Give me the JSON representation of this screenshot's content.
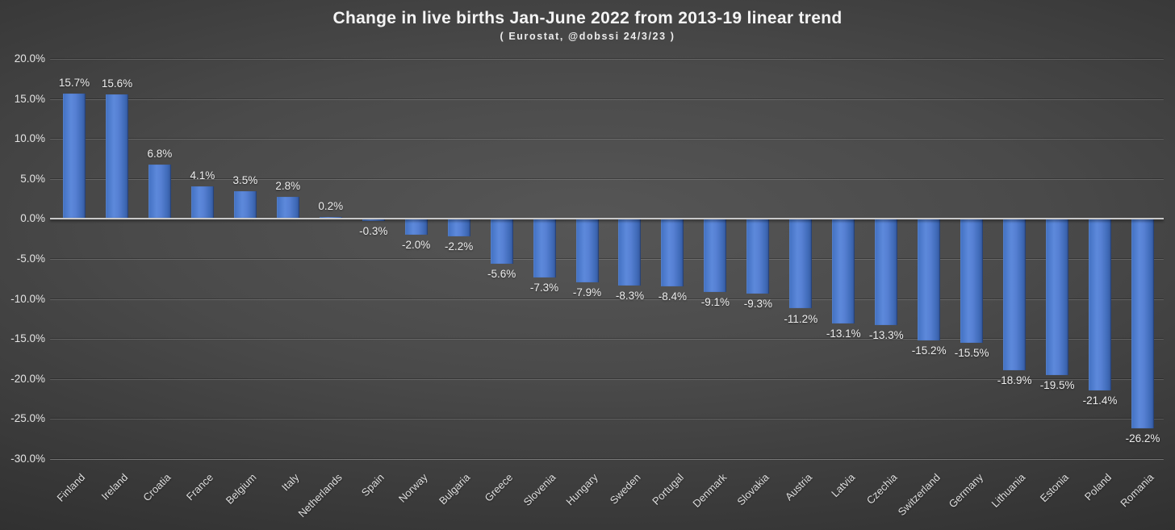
{
  "header": {
    "title": "Change in live births Jan-June 2022 from 2013-19 linear trend",
    "subtitle": "( Eurostat, @dobssi 24/3/23 )"
  },
  "chart_data": {
    "type": "bar",
    "title": "Change in live births Jan-June 2022 from 2013-19 linear trend",
    "subtitle": "( Eurostat, @dobssi 24/3/23 )",
    "xlabel": "",
    "ylabel": "",
    "ylim": [
      -30,
      20
    ],
    "ytick_step": 5,
    "ytick_labels": [
      "20.0%",
      "15.0%",
      "10.0%",
      "5.0%",
      "0.0%",
      "-5.0%",
      "-10.0%",
      "-15.0%",
      "-20.0%",
      "-25.0%",
      "-30.0%"
    ],
    "grid": true,
    "legend_position": "none",
    "bar_color": "#4472C4",
    "categories": [
      "Finland",
      "Ireland",
      "Croatia",
      "France",
      "Belgium",
      "Italy",
      "Netherlands",
      "Spain",
      "Norway",
      "Bulgaria",
      "Greece",
      "Slovenia",
      "Hungary",
      "Sweden",
      "Portugal",
      "Denmark",
      "Slovakia",
      "Austria",
      "Latvia",
      "Czechia",
      "Switzerland",
      "Germany",
      "Lithuania",
      "Estonia",
      "Poland",
      "Romania"
    ],
    "values": [
      15.7,
      15.6,
      6.8,
      4.1,
      3.5,
      2.8,
      0.2,
      -0.3,
      -2.0,
      -2.2,
      -5.6,
      -7.3,
      -7.9,
      -8.3,
      -8.4,
      -9.1,
      -9.3,
      -11.2,
      -13.1,
      -13.3,
      -15.2,
      -15.5,
      -18.9,
      -19.5,
      -21.4,
      -26.2
    ],
    "value_labels": [
      "15.7%",
      "15.6%",
      "6.8%",
      "4.1%",
      "3.5%",
      "2.8%",
      "0.2%",
      "-0.3%",
      "-2.0%",
      "-2.2%",
      "-5.6%",
      "-7.3%",
      "-7.9%",
      "-8.3%",
      "-8.4%",
      "-9.1%",
      "-9.3%",
      "-11.2%",
      "-13.1%",
      "-13.3%",
      "-15.2%",
      "-15.5%",
      "-18.9%",
      "-19.5%",
      "-21.4%",
      "-26.2%"
    ]
  },
  "colors": {
    "background_center": "#565656",
    "background_corner": "#242424",
    "bar_fill": "#4472C4",
    "bar_highlight": "#5d89db",
    "axis_line": "#c9c9c9",
    "text": "#ededed"
  }
}
